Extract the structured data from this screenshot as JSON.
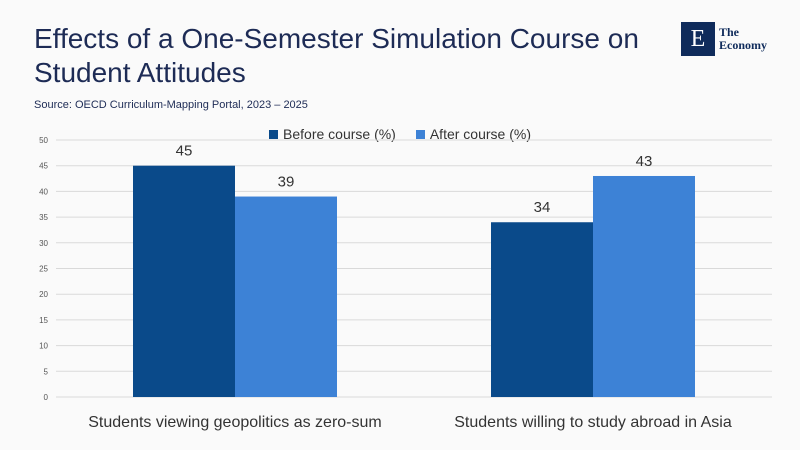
{
  "header": {
    "title": "Effects of a One-Semester Simulation Course on Student Attitudes",
    "source": "Source:  OECD Curriculum-Mapping Portal, 2023 – 2025"
  },
  "logo": {
    "mark": "E",
    "line1": "The",
    "line2": "Economy"
  },
  "colors": {
    "before": "#0a4a8a",
    "after": "#3d82d6",
    "grid": "#d9d9d9"
  },
  "chart_data": {
    "type": "bar",
    "title": "Effects of a One-Semester Simulation Course on Student Attitudes",
    "categories": [
      "Students viewing geopolitics as zero-sum",
      "Students willing to study abroad in Asia"
    ],
    "series": [
      {
        "name": "Before course (%)",
        "values": [
          45,
          34
        ]
      },
      {
        "name": "After course (%)",
        "values": [
          39,
          43
        ]
      }
    ],
    "ylim": [
      0,
      50
    ],
    "yticks": [
      0,
      5,
      10,
      15,
      20,
      25,
      30,
      35,
      40,
      45,
      50
    ],
    "grid": true,
    "legend": "top-center"
  }
}
